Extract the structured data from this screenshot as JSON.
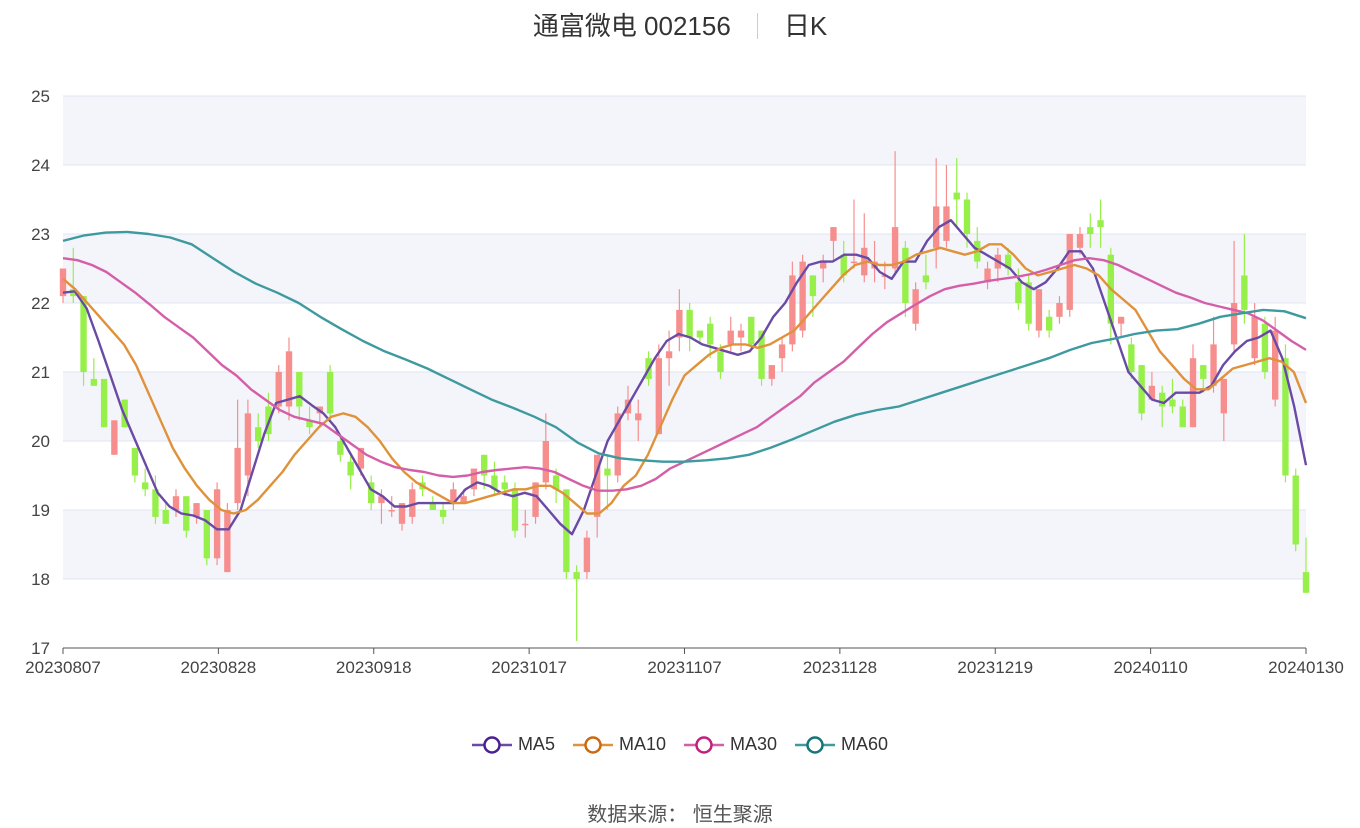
{
  "header": {
    "stock_title": "通富微电 002156",
    "period_label": "日K"
  },
  "footer": {
    "source": "数据来源： 恒生聚源"
  },
  "chart_data": {
    "type": "candlestick",
    "x_ticks": [
      "20230807",
      "20230828",
      "20230918",
      "20231017",
      "20231107",
      "20231128",
      "20231219",
      "20240110",
      "20240130"
    ],
    "ylim": [
      17,
      25
    ],
    "y_ticks": [
      17,
      18,
      19,
      20,
      21,
      22,
      23,
      24,
      25
    ],
    "colors": {
      "up": "#f78e8e",
      "down": "#97ef4a",
      "grid": "#dfe4f2",
      "band": "#f4f5fb",
      "axis_text": "#444444"
    },
    "candles": [
      [
        22.1,
        22.5,
        22.0,
        22.5
      ],
      [
        22.2,
        22.1,
        22.0,
        22.8
      ],
      [
        22.1,
        21.0,
        20.8,
        22.1
      ],
      [
        20.9,
        20.8,
        20.8,
        21.2
      ],
      [
        20.9,
        20.2,
        20.2,
        20.9
      ],
      [
        19.8,
        20.3,
        19.8,
        20.3
      ],
      [
        20.6,
        20.2,
        20.2,
        20.6
      ],
      [
        19.9,
        19.5,
        19.4,
        19.9
      ],
      [
        19.4,
        19.3,
        19.2,
        19.6
      ],
      [
        19.3,
        18.9,
        18.8,
        19.5
      ],
      [
        19.0,
        18.8,
        18.8,
        19.1
      ],
      [
        19.0,
        19.2,
        18.9,
        19.3
      ],
      [
        19.2,
        18.7,
        18.6,
        19.2
      ],
      [
        18.9,
        19.1,
        18.8,
        19.1
      ],
      [
        19.0,
        18.3,
        18.2,
        19.0
      ],
      [
        18.3,
        19.3,
        18.2,
        19.4
      ],
      [
        18.1,
        19.0,
        18.1,
        19.1
      ],
      [
        19.1,
        19.9,
        19.0,
        20.6
      ],
      [
        19.5,
        20.4,
        19.2,
        20.6
      ],
      [
        20.2,
        20.0,
        19.9,
        20.4
      ],
      [
        20.5,
        20.1,
        20.0,
        20.7
      ],
      [
        20.5,
        21.0,
        20.4,
        21.1
      ],
      [
        20.5,
        21.3,
        20.3,
        21.5
      ],
      [
        21.0,
        20.5,
        20.3,
        21.0
      ],
      [
        20.3,
        20.2,
        20.1,
        20.5
      ],
      [
        20.4,
        20.5,
        20.2,
        20.5
      ],
      [
        21.0,
        20.4,
        20.3,
        21.1
      ],
      [
        20.0,
        19.8,
        19.7,
        20.1
      ],
      [
        19.7,
        19.5,
        19.3,
        19.8
      ],
      [
        19.6,
        19.9,
        19.5,
        19.9
      ],
      [
        19.4,
        19.1,
        19.0,
        19.5
      ],
      [
        19.1,
        19.2,
        18.8,
        19.3
      ],
      [
        19.0,
        19.0,
        18.9,
        19.2
      ],
      [
        18.8,
        19.1,
        18.7,
        19.1
      ],
      [
        18.9,
        19.3,
        18.8,
        19.4
      ],
      [
        19.4,
        19.3,
        19.2,
        19.5
      ],
      [
        19.1,
        19.0,
        19.0,
        19.2
      ],
      [
        19.0,
        18.9,
        18.8,
        19.1
      ],
      [
        19.1,
        19.3,
        19.0,
        19.4
      ],
      [
        19.1,
        19.2,
        19.1,
        19.3
      ],
      [
        19.3,
        19.6,
        19.2,
        19.6
      ],
      [
        19.8,
        19.5,
        19.3,
        19.8
      ],
      [
        19.5,
        19.3,
        19.2,
        19.7
      ],
      [
        19.4,
        19.3,
        19.2,
        19.5
      ],
      [
        19.3,
        18.7,
        18.6,
        19.4
      ],
      [
        18.8,
        18.8,
        18.6,
        19.0
      ],
      [
        18.9,
        19.4,
        18.8,
        19.4
      ],
      [
        19.4,
        20.0,
        19.3,
        20.4
      ],
      [
        19.5,
        19.3,
        19.1,
        19.6
      ],
      [
        19.3,
        18.1,
        18.0,
        19.3
      ],
      [
        18.1,
        18.0,
        17.1,
        18.2
      ],
      [
        18.1,
        18.6,
        18.0,
        18.7
      ],
      [
        18.9,
        19.8,
        18.6,
        19.8
      ],
      [
        19.6,
        19.5,
        19.0,
        19.8
      ],
      [
        19.5,
        20.4,
        19.4,
        20.5
      ],
      [
        20.4,
        20.6,
        20.3,
        20.8
      ],
      [
        20.3,
        20.4,
        20.0,
        20.6
      ],
      [
        21.2,
        20.9,
        20.8,
        21.3
      ],
      [
        20.1,
        21.2,
        20.1,
        21.4
      ],
      [
        21.2,
        21.3,
        20.8,
        21.6
      ],
      [
        21.5,
        21.9,
        21.3,
        22.2
      ],
      [
        21.9,
        21.5,
        21.3,
        22.0
      ],
      [
        21.6,
        21.5,
        21.4,
        21.6
      ],
      [
        21.7,
        21.4,
        21.2,
        21.8
      ],
      [
        21.3,
        21.0,
        20.9,
        21.4
      ],
      [
        21.4,
        21.6,
        21.3,
        21.8
      ],
      [
        21.5,
        21.6,
        21.3,
        21.7
      ],
      [
        21.8,
        21.4,
        21.3,
        21.8
      ],
      [
        21.6,
        20.9,
        20.8,
        21.6
      ],
      [
        20.9,
        21.1,
        20.8,
        21.1
      ],
      [
        21.2,
        21.4,
        21.0,
        21.5
      ],
      [
        21.4,
        22.4,
        21.3,
        22.6
      ],
      [
        21.6,
        22.6,
        21.5,
        22.7
      ],
      [
        22.4,
        22.1,
        21.8,
        22.4
      ],
      [
        22.5,
        22.6,
        22.3,
        22.7
      ],
      [
        22.9,
        23.1,
        22.6,
        23.1
      ],
      [
        22.7,
        22.4,
        22.3,
        22.9
      ],
      [
        22.6,
        22.6,
        22.5,
        23.5
      ],
      [
        22.4,
        22.8,
        22.3,
        23.3
      ],
      [
        22.5,
        22.6,
        22.3,
        22.9
      ],
      [
        22.4,
        22.4,
        22.2,
        22.6
      ],
      [
        22.5,
        23.1,
        22.4,
        24.2
      ],
      [
        22.8,
        22.0,
        21.8,
        22.9
      ],
      [
        21.7,
        22.2,
        21.6,
        22.3
      ],
      [
        22.4,
        22.3,
        22.2,
        22.7
      ],
      [
        22.8,
        23.4,
        22.5,
        24.1
      ],
      [
        22.9,
        23.4,
        22.8,
        24.0
      ],
      [
        23.6,
        23.5,
        23.1,
        24.1
      ],
      [
        23.5,
        23.0,
        22.8,
        23.6
      ],
      [
        22.9,
        22.6,
        22.5,
        23.1
      ],
      [
        22.3,
        22.5,
        22.2,
        22.6
      ],
      [
        22.5,
        22.7,
        22.3,
        22.8
      ],
      [
        22.7,
        22.5,
        22.4,
        22.8
      ],
      [
        22.3,
        22.0,
        21.9,
        22.5
      ],
      [
        22.3,
        21.7,
        21.6,
        22.4
      ],
      [
        21.6,
        22.2,
        21.5,
        22.2
      ],
      [
        21.8,
        21.6,
        21.5,
        21.9
      ],
      [
        21.8,
        22.0,
        21.7,
        22.1
      ],
      [
        21.9,
        23.0,
        21.8,
        23.0
      ],
      [
        22.8,
        23.0,
        22.7,
        23.1
      ],
      [
        23.1,
        23.0,
        22.8,
        23.3
      ],
      [
        23.2,
        23.1,
        22.8,
        23.5
      ],
      [
        22.7,
        21.7,
        21.4,
        22.8
      ],
      [
        21.7,
        21.8,
        21.5,
        21.8
      ],
      [
        21.4,
        21.0,
        20.9,
        21.5
      ],
      [
        21.1,
        20.4,
        20.3,
        21.1
      ],
      [
        20.6,
        20.8,
        20.6,
        21.0
      ],
      [
        20.7,
        20.5,
        20.2,
        20.8
      ],
      [
        20.6,
        20.5,
        20.4,
        20.9
      ],
      [
        20.5,
        20.2,
        20.2,
        20.6
      ],
      [
        20.2,
        21.2,
        20.2,
        21.4
      ],
      [
        21.1,
        20.9,
        20.7,
        21.1
      ],
      [
        20.8,
        21.4,
        20.7,
        21.8
      ],
      [
        20.4,
        20.9,
        20.0,
        20.9
      ],
      [
        21.4,
        22.0,
        21.3,
        22.9
      ],
      [
        22.4,
        21.9,
        21.7,
        23.0
      ],
      [
        21.2,
        21.8,
        21.1,
        22.0
      ],
      [
        21.7,
        21.0,
        20.9,
        21.8
      ],
      [
        20.6,
        21.6,
        20.5,
        21.8
      ],
      [
        21.2,
        19.5,
        19.4,
        21.4
      ],
      [
        19.5,
        18.5,
        18.4,
        19.6
      ],
      [
        18.1,
        17.8,
        17.8,
        18.6
      ]
    ],
    "ma_lines": [
      {
        "name": "MA5",
        "color": "#6a4aa5",
        "icon_color": "#4b1f8f",
        "values": [
          22.15,
          22.17,
          21.92,
          21.45,
          20.95,
          20.45,
          20.05,
          19.65,
          19.25,
          19.05,
          18.95,
          18.92,
          18.85,
          18.72,
          18.72,
          19.0,
          19.55,
          20.1,
          20.55,
          20.6,
          20.65,
          20.52,
          20.4,
          20.2,
          19.9,
          19.6,
          19.3,
          19.2,
          19.05,
          19.05,
          19.1,
          19.1,
          19.1,
          19.1,
          19.3,
          19.4,
          19.35,
          19.25,
          19.2,
          19.25,
          19.2,
          19.0,
          18.8,
          18.65,
          19.0,
          19.5,
          20.0,
          20.3,
          20.6,
          20.9,
          21.2,
          21.45,
          21.55,
          21.5,
          21.4,
          21.35,
          21.3,
          21.25,
          21.3,
          21.5,
          21.8,
          22.0,
          22.3,
          22.55,
          22.6,
          22.6,
          22.7,
          22.7,
          22.65,
          22.45,
          22.35,
          22.6,
          22.6,
          22.9,
          23.1,
          23.2,
          23.0,
          22.8,
          22.7,
          22.6,
          22.5,
          22.3,
          22.2,
          22.3,
          22.5,
          22.75,
          22.75,
          22.5,
          22.0,
          21.5,
          21.0,
          20.8,
          20.6,
          20.55,
          20.7,
          20.7,
          20.7,
          20.8,
          21.1,
          21.3,
          21.45,
          21.5,
          21.6,
          21.2,
          20.5,
          19.65
        ]
      },
      {
        "name": "MA10",
        "color": "#e0923a",
        "icon_color": "#c96a10",
        "values": [
          22.35,
          22.2,
          22.0,
          21.8,
          21.6,
          21.4,
          21.1,
          20.7,
          20.3,
          19.9,
          19.6,
          19.35,
          19.15,
          19.0,
          18.95,
          19.0,
          19.15,
          19.35,
          19.55,
          19.8,
          20.0,
          20.2,
          20.35,
          20.4,
          20.35,
          20.2,
          20.0,
          19.75,
          19.55,
          19.4,
          19.3,
          19.2,
          19.1,
          19.1,
          19.15,
          19.2,
          19.25,
          19.3,
          19.3,
          19.35,
          19.35,
          19.25,
          19.1,
          18.95,
          18.95,
          19.1,
          19.35,
          19.5,
          19.8,
          20.2,
          20.6,
          20.95,
          21.1,
          21.25,
          21.35,
          21.4,
          21.4,
          21.35,
          21.4,
          21.5,
          21.6,
          21.8,
          22.0,
          22.2,
          22.4,
          22.55,
          22.6,
          22.55,
          22.55,
          22.6,
          22.7,
          22.75,
          22.8,
          22.75,
          22.7,
          22.75,
          22.85,
          22.85,
          22.7,
          22.5,
          22.4,
          22.45,
          22.5,
          22.55,
          22.5,
          22.4,
          22.2,
          22.05,
          21.9,
          21.6,
          21.3,
          21.1,
          20.9,
          20.75,
          20.75,
          20.9,
          21.05,
          21.1,
          21.15,
          21.2,
          21.15,
          21.0,
          20.55
        ]
      },
      {
        "name": "MA30",
        "color": "#d45fa8",
        "icon_color": "#c21f7d",
        "values": [
          22.65,
          22.62,
          22.55,
          22.45,
          22.3,
          22.15,
          21.98,
          21.8,
          21.65,
          21.5,
          21.3,
          21.1,
          20.95,
          20.75,
          20.6,
          20.45,
          20.35,
          20.3,
          20.25,
          20.1,
          19.95,
          19.8,
          19.7,
          19.62,
          19.58,
          19.55,
          19.5,
          19.48,
          19.5,
          19.55,
          19.58,
          19.6,
          19.62,
          19.6,
          19.55,
          19.45,
          19.35,
          19.28,
          19.28,
          19.3,
          19.35,
          19.45,
          19.6,
          19.7,
          19.8,
          19.9,
          20.0,
          20.1,
          20.2,
          20.35,
          20.5,
          20.65,
          20.85,
          21.0,
          21.15,
          21.35,
          21.55,
          21.72,
          21.85,
          21.98,
          22.1,
          22.2,
          22.25,
          22.28,
          22.32,
          22.35,
          22.38,
          22.42,
          22.48,
          22.55,
          22.62,
          22.65,
          22.62,
          22.55,
          22.45,
          22.35,
          22.25,
          22.15,
          22.08,
          22.0,
          21.95,
          21.9,
          21.85,
          21.75,
          21.6,
          21.45,
          21.32
        ]
      },
      {
        "name": "MA60",
        "color": "#3f9aa0",
        "icon_color": "#157577",
        "values": [
          22.9,
          22.98,
          23.02,
          23.03,
          23.0,
          22.95,
          22.85,
          22.65,
          22.45,
          22.28,
          22.15,
          22.0,
          21.8,
          21.62,
          21.45,
          21.3,
          21.18,
          21.05,
          20.9,
          20.75,
          20.6,
          20.48,
          20.35,
          20.2,
          19.98,
          19.82,
          19.75,
          19.72,
          19.7,
          19.7,
          19.72,
          19.75,
          19.8,
          19.9,
          20.02,
          20.15,
          20.28,
          20.38,
          20.45,
          20.5,
          20.6,
          20.7,
          20.8,
          20.9,
          21.0,
          21.1,
          21.2,
          21.32,
          21.42,
          21.48,
          21.55,
          21.6,
          21.62,
          21.7,
          21.8,
          21.85,
          21.9,
          21.88,
          21.78
        ]
      }
    ]
  }
}
